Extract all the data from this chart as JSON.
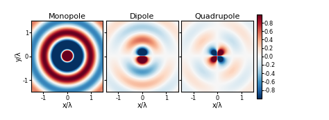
{
  "titles": [
    "Monopole",
    "Dipole",
    "Quadrupole"
  ],
  "xlabel": "x/λ",
  "ylabel": "y/λ",
  "xlim": [
    -1.5,
    1.5
  ],
  "ylim": [
    -1.5,
    1.5
  ],
  "colorbar_ticks": [
    0.8,
    0.6,
    0.4,
    0.2,
    0.0,
    -0.2,
    -0.4,
    -0.6,
    -0.8
  ],
  "colormap": "RdBu_r",
  "grid_points": 500,
  "k": 6.2831853,
  "figsize": [
    4.74,
    1.74
  ],
  "dpi": 100
}
